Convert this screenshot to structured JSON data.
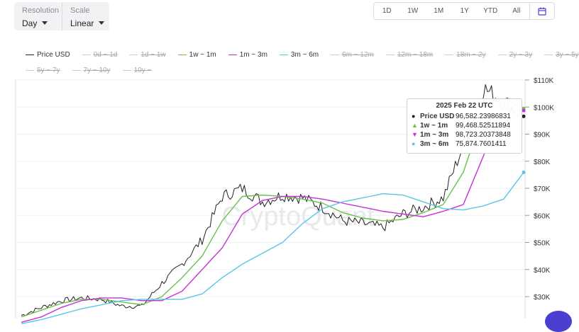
{
  "controls": {
    "resolution": {
      "label": "Resolution",
      "value": "Day"
    },
    "scale": {
      "label": "Scale",
      "value": "Linear"
    }
  },
  "range_buttons": [
    "1D",
    "1W",
    "1M",
    "1Y",
    "YTD",
    "All"
  ],
  "calendar_icon": "calendar-icon",
  "watermark": "CryptoQuant",
  "legend": [
    {
      "label": "Price USD",
      "color": "#222222",
      "active": true
    },
    {
      "label": "0d ~ 1d",
      "color": "#cccccc",
      "active": false
    },
    {
      "label": "1d ~ 1w",
      "color": "#cccccc",
      "active": false
    },
    {
      "label": "1w ~ 1m",
      "color": "#6cc04a",
      "active": true
    },
    {
      "label": "1m ~ 3m",
      "color": "#c630d6",
      "active": true
    },
    {
      "label": "3m ~ 6m",
      "color": "#58c6e6",
      "active": true
    },
    {
      "label": "6m ~ 12m",
      "color": "#cccccc",
      "active": false
    },
    {
      "label": "12m ~ 18m",
      "color": "#cccccc",
      "active": false
    },
    {
      "label": "18m ~ 2y",
      "color": "#cccccc",
      "active": false
    },
    {
      "label": "2y ~ 3y",
      "color": "#cccccc",
      "active": false
    },
    {
      "label": "3y ~ 5y",
      "color": "#cccccc",
      "active": false
    },
    {
      "label": "5y ~ 7y",
      "color": "#cccccc",
      "active": false
    },
    {
      "label": "7y ~ 10y",
      "color": "#cccccc",
      "active": false
    },
    {
      "label": "10y ~",
      "color": "#cccccc",
      "active": false
    }
  ],
  "tooltip": {
    "title": "2025 Feb 22 UTC",
    "rows": [
      {
        "marker": "●",
        "color": "#111111",
        "name": "Price USD",
        "value": "96,582.23986831"
      },
      {
        "marker": "▲",
        "color": "#6cc04a",
        "name": "1w ~ 1m",
        "value": "99,468.52511894"
      },
      {
        "marker": "▼",
        "color": "#c630d6",
        "name": "1m ~ 3m",
        "value": "98,723.20373848"
      },
      {
        "marker": "●",
        "color": "#58c6e6",
        "name": "3m ~ 6m",
        "value": "75,874.7601411"
      }
    ]
  },
  "chart_data": {
    "type": "line",
    "title": "",
    "xlabel": "",
    "ylabel": "",
    "y_ticks": [
      30000,
      40000,
      50000,
      60000,
      70000,
      80000,
      90000,
      100000,
      110000
    ],
    "y_tick_labels": [
      "$30K",
      "$40K",
      "$50K",
      "$60K",
      "$70K",
      "$80K",
      "$90K",
      "$100K",
      "$110K"
    ],
    "ylim": [
      22000,
      110000
    ],
    "grid": true,
    "x": [
      0,
      4,
      8,
      12,
      16,
      20,
      24,
      28,
      32,
      36,
      40,
      44,
      48,
      52,
      56,
      60,
      64,
      68,
      72,
      76,
      80,
      84,
      88,
      92,
      96,
      100
    ],
    "series": [
      {
        "name": "Price USD",
        "color": "#222222",
        "values": [
          23000,
          26000,
          28500,
          29500,
          29000,
          26500,
          26500,
          35000,
          42000,
          51000,
          67000,
          70000,
          65000,
          67500,
          66500,
          63000,
          58000,
          57000,
          55500,
          60500,
          63000,
          66500,
          86000,
          107000,
          102000,
          96582
        ]
      },
      {
        "name": "1w ~ 1m",
        "color": "#6cc04a",
        "values": [
          22500,
          25000,
          27500,
          29000,
          29000,
          28000,
          27000,
          30000,
          37000,
          45000,
          58000,
          67000,
          67500,
          67000,
          66000,
          64500,
          61000,
          59000,
          58000,
          58500,
          61000,
          64000,
          76000,
          98000,
          103000,
          99468
        ]
      },
      {
        "name": "1m ~ 3m",
        "color": "#c630d6",
        "values": [
          20500,
          22500,
          26000,
          28500,
          29500,
          29500,
          28500,
          28500,
          32000,
          40000,
          48000,
          60500,
          65500,
          67000,
          67000,
          66000,
          64500,
          63000,
          61500,
          60500,
          59500,
          61500,
          64000,
          82000,
          99000,
          98723
        ]
      },
      {
        "name": "3m ~ 6m",
        "color": "#58c6e6",
        "values": [
          20000,
          21500,
          23500,
          25500,
          27000,
          28500,
          29000,
          29000,
          29000,
          31000,
          37000,
          42000,
          46000,
          50000,
          57000,
          62500,
          65000,
          66500,
          68000,
          67500,
          65000,
          62500,
          62000,
          63500,
          66000,
          75875
        ]
      }
    ]
  }
}
